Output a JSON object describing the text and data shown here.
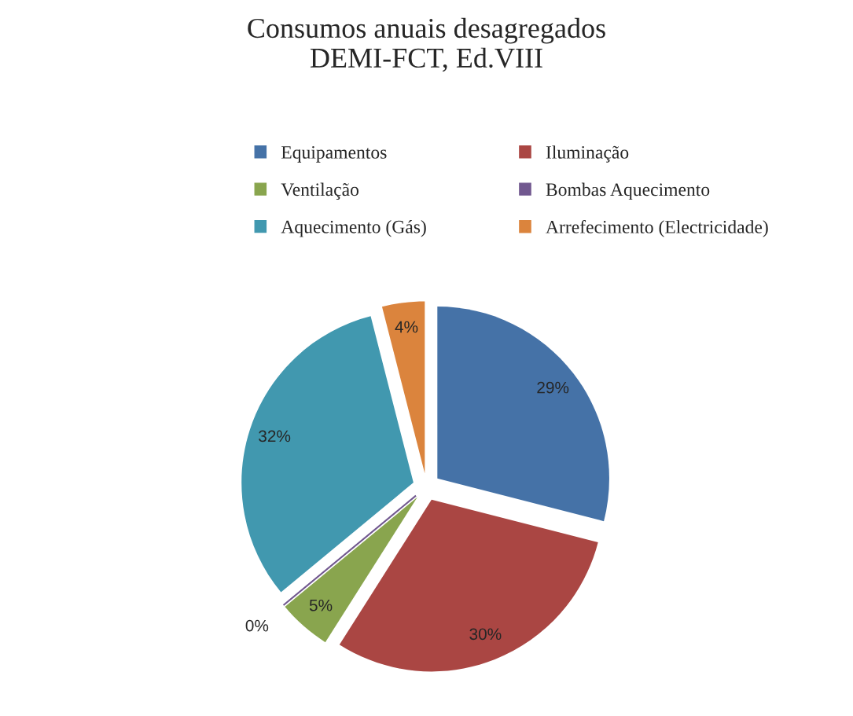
{
  "chart_data": {
    "type": "pie",
    "title": "Consumos anuais desagregados\nDEMI-FCT, Ed.VIII",
    "categories": [
      "Equipamentos",
      "Iluminação",
      "Ventilação",
      "Bombas Aquecimento",
      "Aquecimento (Gás)",
      "Arrefecimento (Electricidade)"
    ],
    "values": [
      29,
      30,
      5,
      0,
      32,
      4
    ],
    "colors": [
      "#4572a7",
      "#aa4643",
      "#89a54e",
      "#71588f",
      "#4198af",
      "#db843d"
    ],
    "value_labels": [
      "29%",
      "30%",
      "5%",
      "0%",
      "32%",
      "4%"
    ],
    "legend": "top"
  }
}
